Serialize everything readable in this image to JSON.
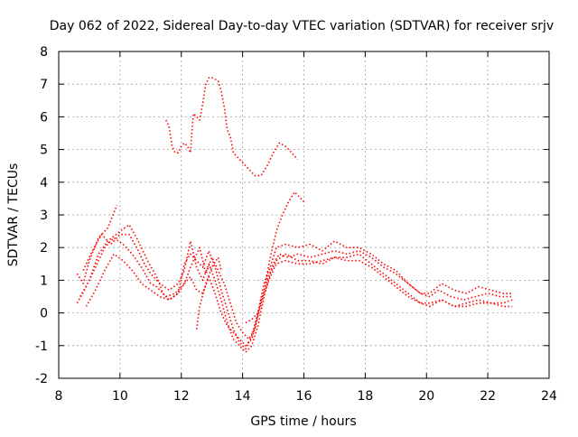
{
  "chart_data": {
    "type": "scatter",
    "title": "Day 062 of 2022, Sidereal Day-to-day VTEC variation (SDTVAR) for receiver srjv",
    "xlabel": "GPS time / hours",
    "ylabel": "SDTVAR / TECUs",
    "xlim": [
      8,
      24
    ],
    "ylim": [
      -2,
      8
    ],
    "xticks": [
      8,
      10,
      12,
      14,
      16,
      18,
      20,
      22,
      24
    ],
    "yticks": [
      -2,
      -1,
      0,
      1,
      2,
      3,
      4,
      5,
      6,
      7,
      8
    ],
    "grid": true,
    "marker": "+",
    "color": "#ff0000",
    "series": [
      {
        "name": "trace-1",
        "points": [
          [
            8.6,
            1.2
          ],
          [
            8.8,
            0.9
          ],
          [
            9.0,
            1.6
          ],
          [
            9.3,
            2.3
          ],
          [
            9.6,
            2.6
          ],
          [
            9.9,
            3.3
          ]
        ]
      },
      {
        "name": "trace-2",
        "points": [
          [
            8.6,
            0.3
          ],
          [
            8.9,
            0.8
          ],
          [
            9.2,
            1.4
          ],
          [
            9.5,
            2.0
          ],
          [
            9.8,
            2.3
          ],
          [
            10.1,
            2.1
          ],
          [
            10.4,
            1.8
          ],
          [
            10.7,
            1.4
          ],
          [
            11.0,
            0.9
          ],
          [
            11.2,
            0.8
          ],
          [
            11.5,
            0.5
          ],
          [
            11.8,
            0.6
          ],
          [
            12.1,
            0.9
          ],
          [
            12.3,
            1.4
          ],
          [
            12.6,
            2.0
          ],
          [
            12.8,
            1.2
          ],
          [
            13.0,
            1.7
          ],
          [
            13.2,
            1.3
          ],
          [
            13.4,
            0.9
          ],
          [
            13.6,
            0.3
          ],
          [
            13.8,
            -0.3
          ],
          [
            14.0,
            -0.6
          ],
          [
            14.2,
            -0.8
          ],
          [
            14.4,
            -0.5
          ],
          [
            14.6,
            0.4
          ],
          [
            14.8,
            1.0
          ],
          [
            15.0,
            1.5
          ],
          [
            15.2,
            1.8
          ],
          [
            15.5,
            1.7
          ],
          [
            15.8,
            1.8
          ],
          [
            16.2,
            1.7
          ],
          [
            16.6,
            1.8
          ],
          [
            17.0,
            1.9
          ],
          [
            17.4,
            1.8
          ],
          [
            17.8,
            1.9
          ],
          [
            18.2,
            1.7
          ],
          [
            18.6,
            1.4
          ],
          [
            19.0,
            1.2
          ],
          [
            19.4,
            0.9
          ],
          [
            19.8,
            0.6
          ],
          [
            20.1,
            0.5
          ],
          [
            20.4,
            0.7
          ],
          [
            20.8,
            0.5
          ],
          [
            21.2,
            0.4
          ],
          [
            21.6,
            0.5
          ],
          [
            22.0,
            0.6
          ],
          [
            22.4,
            0.5
          ],
          [
            22.8,
            0.5
          ]
        ]
      },
      {
        "name": "trace-3",
        "points": [
          [
            8.7,
            0.5
          ],
          [
            9.0,
            1.0
          ],
          [
            9.3,
            1.8
          ],
          [
            9.6,
            2.2
          ],
          [
            10.0,
            2.5
          ],
          [
            10.3,
            2.7
          ],
          [
            10.6,
            2.2
          ],
          [
            10.9,
            1.6
          ],
          [
            11.2,
            1.1
          ],
          [
            11.4,
            0.6
          ],
          [
            11.6,
            0.4
          ],
          [
            11.9,
            0.6
          ],
          [
            12.1,
            1.5
          ],
          [
            12.3,
            1.8
          ],
          [
            12.5,
            1.6
          ],
          [
            12.7,
            1.4
          ],
          [
            12.9,
            1.9
          ],
          [
            13.1,
            1.4
          ],
          [
            13.3,
            0.7
          ],
          [
            13.5,
            0.1
          ],
          [
            13.7,
            -0.5
          ],
          [
            13.9,
            -0.9
          ],
          [
            14.1,
            -1.1
          ],
          [
            14.3,
            -0.7
          ],
          [
            14.5,
            0.0
          ],
          [
            14.7,
            0.9
          ],
          [
            14.9,
            1.4
          ],
          [
            15.1,
            2.0
          ],
          [
            15.4,
            2.1
          ],
          [
            15.8,
            2.0
          ],
          [
            16.2,
            2.1
          ],
          [
            16.6,
            1.9
          ],
          [
            17.0,
            2.2
          ],
          [
            17.4,
            2.0
          ],
          [
            17.8,
            2.0
          ],
          [
            18.2,
            1.8
          ],
          [
            18.6,
            1.5
          ],
          [
            19.0,
            1.3
          ],
          [
            19.4,
            0.9
          ],
          [
            19.8,
            0.6
          ],
          [
            20.1,
            0.6
          ],
          [
            20.5,
            0.9
          ],
          [
            20.9,
            0.7
          ],
          [
            21.3,
            0.6
          ],
          [
            21.7,
            0.8
          ],
          [
            22.1,
            0.7
          ],
          [
            22.5,
            0.6
          ],
          [
            22.8,
            0.6
          ]
        ]
      },
      {
        "name": "trace-4",
        "points": [
          [
            8.8,
            1.3
          ],
          [
            9.1,
            1.9
          ],
          [
            9.4,
            2.4
          ],
          [
            9.7,
            2.1
          ],
          [
            10.0,
            2.4
          ],
          [
            10.3,
            2.4
          ],
          [
            10.6,
            1.9
          ],
          [
            10.8,
            1.5
          ],
          [
            11.0,
            1.2
          ],
          [
            11.3,
            0.9
          ],
          [
            11.6,
            0.7
          ],
          [
            11.9,
            0.9
          ],
          [
            12.1,
            1.3
          ],
          [
            12.3,
            2.2
          ],
          [
            12.5,
            1.4
          ],
          [
            12.7,
            1.0
          ],
          [
            12.9,
            1.5
          ],
          [
            13.1,
            1.0
          ],
          [
            13.3,
            0.4
          ],
          [
            13.5,
            -0.3
          ],
          [
            13.7,
            -0.8
          ],
          [
            13.9,
            -1.0
          ],
          [
            14.1,
            -1.2
          ],
          [
            14.3,
            -1.0
          ],
          [
            14.5,
            -0.4
          ],
          [
            14.7,
            0.5
          ],
          [
            14.9,
            1.2
          ],
          [
            15.1,
            1.6
          ],
          [
            15.4,
            1.8
          ],
          [
            15.8,
            1.6
          ],
          [
            16.2,
            1.6
          ],
          [
            16.6,
            1.5
          ],
          [
            17.0,
            1.7
          ],
          [
            17.4,
            1.7
          ],
          [
            17.8,
            1.8
          ],
          [
            18.2,
            1.5
          ],
          [
            18.6,
            1.2
          ],
          [
            19.0,
            0.9
          ],
          [
            19.4,
            0.6
          ],
          [
            19.8,
            0.3
          ],
          [
            20.1,
            0.2
          ],
          [
            20.5,
            0.4
          ],
          [
            20.9,
            0.2
          ],
          [
            21.3,
            0.2
          ],
          [
            21.7,
            0.3
          ],
          [
            22.1,
            0.3
          ],
          [
            22.5,
            0.2
          ],
          [
            22.8,
            0.2
          ]
        ]
      },
      {
        "name": "trace-5",
        "points": [
          [
            8.9,
            0.2
          ],
          [
            9.2,
            0.7
          ],
          [
            9.5,
            1.3
          ],
          [
            9.8,
            1.8
          ],
          [
            10.1,
            1.6
          ],
          [
            10.4,
            1.3
          ],
          [
            10.7,
            0.9
          ],
          [
            11.0,
            0.7
          ],
          [
            11.3,
            0.5
          ],
          [
            11.6,
            0.4
          ],
          [
            11.9,
            0.6
          ],
          [
            12.1,
            0.9
          ],
          [
            12.3,
            1.1
          ],
          [
            12.5,
            0.7
          ],
          [
            12.7,
            0.6
          ],
          [
            12.9,
            1.1
          ],
          [
            13.1,
            0.6
          ],
          [
            13.3,
            0.0
          ],
          [
            13.5,
            -0.4
          ],
          [
            13.7,
            -0.6
          ],
          [
            13.9,
            -0.8
          ],
          [
            14.1,
            -1.0
          ],
          [
            14.3,
            -0.8
          ],
          [
            14.5,
            -0.1
          ],
          [
            14.7,
            0.6
          ],
          [
            14.9,
            1.1
          ],
          [
            15.1,
            1.5
          ],
          [
            15.4,
            1.6
          ],
          [
            15.8,
            1.5
          ],
          [
            16.2,
            1.5
          ],
          [
            16.6,
            1.6
          ],
          [
            17.0,
            1.7
          ],
          [
            17.4,
            1.6
          ],
          [
            17.8,
            1.6
          ],
          [
            18.2,
            1.4
          ],
          [
            18.6,
            1.1
          ],
          [
            19.0,
            0.8
          ],
          [
            19.4,
            0.5
          ],
          [
            19.8,
            0.3
          ],
          [
            20.1,
            0.3
          ],
          [
            20.5,
            0.4
          ],
          [
            20.9,
            0.2
          ],
          [
            21.3,
            0.3
          ],
          [
            21.7,
            0.4
          ],
          [
            22.1,
            0.3
          ],
          [
            22.5,
            0.3
          ],
          [
            22.8,
            0.4
          ]
        ]
      },
      {
        "name": "trace-6",
        "points": [
          [
            12.5,
            -0.5
          ],
          [
            12.6,
            0.2
          ],
          [
            12.8,
            0.9
          ],
          [
            13.0,
            1.4
          ],
          [
            13.2,
            1.7
          ],
          [
            13.3,
            1.3
          ]
        ]
      },
      {
        "name": "trace-7",
        "points": [
          [
            14.1,
            -0.3
          ],
          [
            14.3,
            -0.2
          ],
          [
            14.5,
            0.0
          ],
          [
            14.7,
            0.7
          ],
          [
            14.9,
            1.7
          ],
          [
            15.1,
            2.5
          ],
          [
            15.3,
            3.0
          ],
          [
            15.5,
            3.4
          ],
          [
            15.7,
            3.7
          ],
          [
            15.9,
            3.5
          ],
          [
            16.0,
            3.4
          ]
        ]
      },
      {
        "name": "trace-8",
        "points": [
          [
            11.5,
            5.9
          ],
          [
            11.6,
            5.7
          ],
          [
            11.7,
            5.1
          ],
          [
            11.8,
            4.9
          ],
          [
            11.9,
            4.9
          ],
          [
            12.0,
            5.1
          ],
          [
            12.1,
            5.2
          ],
          [
            12.2,
            5.1
          ],
          [
            12.3,
            4.9
          ],
          [
            12.35,
            5.6
          ],
          [
            12.4,
            6.1
          ],
          [
            12.5,
            6.0
          ],
          [
            12.6,
            5.9
          ],
          [
            12.7,
            6.4
          ],
          [
            12.8,
            7.0
          ],
          [
            12.9,
            7.2
          ],
          [
            13.0,
            7.2
          ],
          [
            13.2,
            7.1
          ],
          [
            13.3,
            6.8
          ],
          [
            13.4,
            6.3
          ],
          [
            13.5,
            5.6
          ],
          [
            13.6,
            5.4
          ],
          [
            13.7,
            4.9
          ],
          [
            13.8,
            4.8
          ],
          [
            14.0,
            4.6
          ],
          [
            14.2,
            4.4
          ],
          [
            14.4,
            4.2
          ],
          [
            14.6,
            4.2
          ],
          [
            14.8,
            4.5
          ],
          [
            15.0,
            4.9
          ],
          [
            15.2,
            5.2
          ],
          [
            15.4,
            5.1
          ],
          [
            15.6,
            4.9
          ],
          [
            15.8,
            4.7
          ]
        ]
      }
    ]
  }
}
